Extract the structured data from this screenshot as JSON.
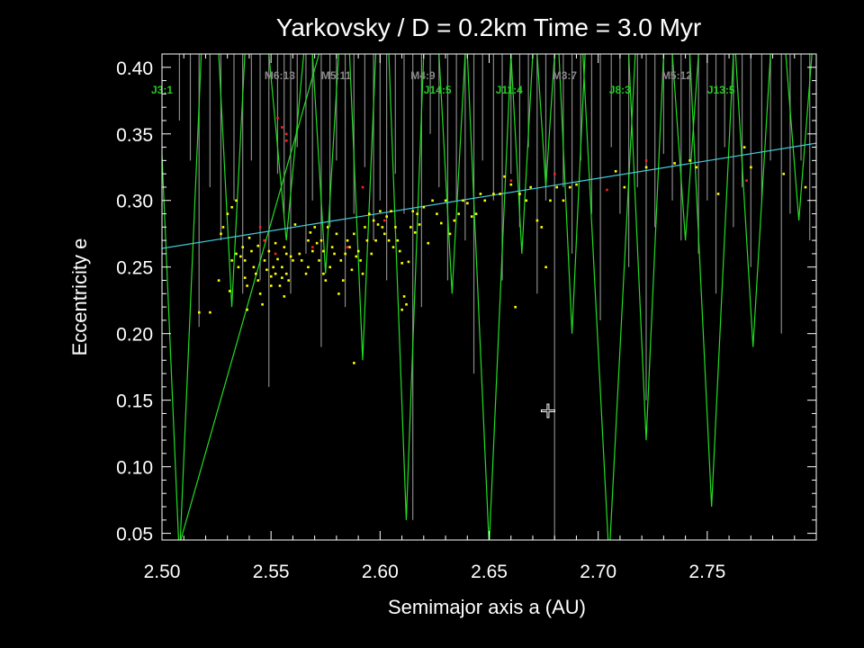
{
  "chart_data": {
    "type": "scatter",
    "title": "Yarkovsky / D = 0.2km   Time =    3.0 Myr",
    "xlabel": "Semimajor axis a (AU)",
    "ylabel": "Eccentricity e",
    "xlim": [
      2.5,
      2.8
    ],
    "ylim": [
      0.045,
      0.41
    ],
    "x_ticks": [
      "2.50",
      "2.55",
      "2.60",
      "2.65",
      "2.70",
      "2.75"
    ],
    "y_ticks": [
      "0.05",
      "0.10",
      "0.15",
      "0.20",
      "0.25",
      "0.30",
      "0.35",
      "0.40"
    ],
    "colors": {
      "background": "#000000",
      "axes": "#ffffff",
      "jupiter_resonance": "#22dd22",
      "minor_resonance": "#888888",
      "reference_line": "#44ccdd",
      "particles_main": "#ffff00",
      "particles_escaped": "#ff2020"
    },
    "resonance_labels": [
      {
        "label": "J3:1",
        "a": 2.5,
        "color": "#22cc22",
        "row": 2
      },
      {
        "label": "M6:13",
        "a": 2.547,
        "color": "#888888",
        "row": 1
      },
      {
        "label": "M5:11",
        "a": 2.573,
        "color": "#888888",
        "row": 1
      },
      {
        "label": "M4:9",
        "a": 2.614,
        "color": "#888888",
        "row": 1
      },
      {
        "label": "J14:5",
        "a": 2.62,
        "color": "#22cc22",
        "row": 2
      },
      {
        "label": "J11:4",
        "a": 2.653,
        "color": "#22cc22",
        "row": 2
      },
      {
        "label": "M3:7",
        "a": 2.679,
        "color": "#888888",
        "row": 1
      },
      {
        "label": "J8:3",
        "a": 2.705,
        "color": "#22cc22",
        "row": 2
      },
      {
        "label": "M5:12",
        "a": 2.729,
        "color": "#888888",
        "row": 1
      },
      {
        "label": "J13:5",
        "a": 2.75,
        "color": "#22cc22",
        "row": 2
      }
    ],
    "reference_line": {
      "a": [
        2.5,
        2.8
      ],
      "e": [
        0.264,
        0.343
      ]
    },
    "marker": {
      "a": 2.677,
      "e": 0.142
    },
    "green_spikes": [
      {
        "a": 2.508,
        "e_min": 0.03,
        "w": 0.01
      },
      {
        "a": 2.532,
        "e_min": 0.22,
        "w": 0.006
      },
      {
        "a": 2.557,
        "e_min": 0.27,
        "w": 0.008
      },
      {
        "a": 2.575,
        "e_min": 0.245,
        "w": 0.006
      },
      {
        "a": 2.592,
        "e_min": 0.18,
        "w": 0.006
      },
      {
        "a": 2.612,
        "e_min": 0.06,
        "w": 0.008
      },
      {
        "a": 2.633,
        "e_min": 0.23,
        "w": 0.006
      },
      {
        "a": 2.65,
        "e_min": 0.04,
        "w": 0.01
      },
      {
        "a": 2.665,
        "e_min": 0.26,
        "w": 0.005
      },
      {
        "a": 2.676,
        "e_min": 0.31,
        "w": 0.004
      },
      {
        "a": 2.688,
        "e_min": 0.2,
        "w": 0.006
      },
      {
        "a": 2.705,
        "e_min": 0.03,
        "w": 0.012
      },
      {
        "a": 2.722,
        "e_min": 0.12,
        "w": 0.008
      },
      {
        "a": 2.74,
        "e_min": 0.27,
        "w": 0.006
      },
      {
        "a": 2.752,
        "e_min": 0.07,
        "w": 0.01
      },
      {
        "a": 2.771,
        "e_min": 0.19,
        "w": 0.008
      },
      {
        "a": 2.792,
        "e_min": 0.285,
        "w": 0.006
      }
    ],
    "grey_lines": [
      {
        "a": 2.508,
        "e_min": 0.36
      },
      {
        "a": 2.513,
        "e_min": 0.33
      },
      {
        "a": 2.517,
        "e_min": 0.205
      },
      {
        "a": 2.522,
        "e_min": 0.31
      },
      {
        "a": 2.527,
        "e_min": 0.27
      },
      {
        "a": 2.533,
        "e_min": 0.3
      },
      {
        "a": 2.537,
        "e_min": 0.23
      },
      {
        "a": 2.541,
        "e_min": 0.33
      },
      {
        "a": 2.545,
        "e_min": 0.24
      },
      {
        "a": 2.549,
        "e_min": 0.16
      },
      {
        "a": 2.553,
        "e_min": 0.32
      },
      {
        "a": 2.556,
        "e_min": 0.29
      },
      {
        "a": 2.559,
        "e_min": 0.23
      },
      {
        "a": 2.562,
        "e_min": 0.34
      },
      {
        "a": 2.566,
        "e_min": 0.26
      },
      {
        "a": 2.569,
        "e_min": 0.3
      },
      {
        "a": 2.573,
        "e_min": 0.19
      },
      {
        "a": 2.577,
        "e_min": 0.28
      },
      {
        "a": 2.58,
        "e_min": 0.33
      },
      {
        "a": 2.584,
        "e_min": 0.22
      },
      {
        "a": 2.588,
        "e_min": 0.29
      },
      {
        "a": 2.593,
        "e_min": 0.325
      },
      {
        "a": 2.597,
        "e_min": 0.27
      },
      {
        "a": 2.6,
        "e_min": 0.3
      },
      {
        "a": 2.603,
        "e_min": 0.24
      },
      {
        "a": 2.607,
        "e_min": 0.32
      },
      {
        "a": 2.611,
        "e_min": 0.29
      },
      {
        "a": 2.615,
        "e_min": 0.06
      },
      {
        "a": 2.619,
        "e_min": 0.22
      },
      {
        "a": 2.623,
        "e_min": 0.35
      },
      {
        "a": 2.627,
        "e_min": 0.31
      },
      {
        "a": 2.631,
        "e_min": 0.24
      },
      {
        "a": 2.635,
        "e_min": 0.3
      },
      {
        "a": 2.639,
        "e_min": 0.27
      },
      {
        "a": 2.643,
        "e_min": 0.17
      },
      {
        "a": 2.647,
        "e_min": 0.33
      },
      {
        "a": 2.652,
        "e_min": 0.3
      },
      {
        "a": 2.656,
        "e_min": 0.24
      },
      {
        "a": 2.66,
        "e_min": 0.32
      },
      {
        "a": 2.664,
        "e_min": 0.28
      },
      {
        "a": 2.668,
        "e_min": 0.34
      },
      {
        "a": 2.672,
        "e_min": 0.23
      },
      {
        "a": 2.676,
        "e_min": 0.3
      },
      {
        "a": 2.68,
        "e_min": 0.04
      },
      {
        "a": 2.684,
        "e_min": 0.31
      },
      {
        "a": 2.688,
        "e_min": 0.26
      },
      {
        "a": 2.692,
        "e_min": 0.33
      },
      {
        "a": 2.697,
        "e_min": 0.29
      },
      {
        "a": 2.701,
        "e_min": 0.21
      },
      {
        "a": 2.706,
        "e_min": 0.34
      },
      {
        "a": 2.71,
        "e_min": 0.29
      },
      {
        "a": 2.714,
        "e_min": 0.25
      },
      {
        "a": 2.718,
        "e_min": 0.31
      },
      {
        "a": 2.722,
        "e_min": 0.15
      },
      {
        "a": 2.726,
        "e_min": 0.28
      },
      {
        "a": 2.73,
        "e_min": 0.335
      },
      {
        "a": 2.734,
        "e_min": 0.3
      },
      {
        "a": 2.738,
        "e_min": 0.27
      },
      {
        "a": 2.742,
        "e_min": 0.33
      },
      {
        "a": 2.746,
        "e_min": 0.26
      },
      {
        "a": 2.75,
        "e_min": 0.3
      },
      {
        "a": 2.754,
        "e_min": 0.23
      },
      {
        "a": 2.758,
        "e_min": 0.34
      },
      {
        "a": 2.762,
        "e_min": 0.28
      },
      {
        "a": 2.766,
        "e_min": 0.31
      },
      {
        "a": 2.77,
        "e_min": 0.25
      },
      {
        "a": 2.775,
        "e_min": 0.3
      },
      {
        "a": 2.779,
        "e_min": 0.33
      },
      {
        "a": 2.784,
        "e_min": 0.2
      },
      {
        "a": 2.788,
        "e_min": 0.29
      },
      {
        "a": 2.793,
        "e_min": 0.33
      },
      {
        "a": 2.797,
        "e_min": 0.27
      }
    ],
    "series": [
      {
        "color": "#ffff00",
        "points": [
          [
            2.517,
            0.216
          ],
          [
            2.522,
            0.216
          ],
          [
            2.526,
            0.24
          ],
          [
            2.527,
            0.275
          ],
          [
            2.528,
            0.28
          ],
          [
            2.53,
            0.29
          ],
          [
            2.532,
            0.295
          ],
          [
            2.534,
            0.3
          ],
          [
            2.531,
            0.232
          ],
          [
            2.532,
            0.255
          ],
          [
            2.534,
            0.26
          ],
          [
            2.535,
            0.25
          ],
          [
            2.536,
            0.258
          ],
          [
            2.537,
            0.265
          ],
          [
            2.538,
            0.242
          ],
          [
            2.538,
            0.255
          ],
          [
            2.539,
            0.236
          ],
          [
            2.539,
            0.218
          ],
          [
            2.54,
            0.272
          ],
          [
            2.541,
            0.262
          ],
          [
            2.542,
            0.25
          ],
          [
            2.543,
            0.245
          ],
          [
            2.544,
            0.266
          ],
          [
            2.544,
            0.24
          ],
          [
            2.545,
            0.23
          ],
          [
            2.546,
            0.222
          ],
          [
            2.547,
            0.27
          ],
          [
            2.547,
            0.255
          ],
          [
            2.548,
            0.248
          ],
          [
            2.549,
            0.262
          ],
          [
            2.55,
            0.243
          ],
          [
            2.55,
            0.236
          ],
          [
            2.551,
            0.25
          ],
          [
            2.552,
            0.268
          ],
          [
            2.552,
            0.245
          ],
          [
            2.553,
            0.256
          ],
          [
            2.554,
            0.236
          ],
          [
            2.555,
            0.242
          ],
          [
            2.555,
            0.25
          ],
          [
            2.556,
            0.265
          ],
          [
            2.556,
            0.228
          ],
          [
            2.557,
            0.26
          ],
          [
            2.557,
            0.245
          ],
          [
            2.558,
            0.24
          ],
          [
            2.559,
            0.258
          ],
          [
            2.56,
            0.255
          ],
          [
            2.561,
            0.282
          ],
          [
            2.563,
            0.26
          ],
          [
            2.564,
            0.255
          ],
          [
            2.566,
            0.245
          ],
          [
            2.567,
            0.27
          ],
          [
            2.567,
            0.25
          ],
          [
            2.568,
            0.276
          ],
          [
            2.569,
            0.262
          ],
          [
            2.57,
            0.28
          ],
          [
            2.571,
            0.268
          ],
          [
            2.572,
            0.255
          ],
          [
            2.573,
            0.27
          ],
          [
            2.574,
            0.262
          ],
          [
            2.574,
            0.245
          ],
          [
            2.575,
            0.24
          ],
          [
            2.576,
            0.28
          ],
          [
            2.577,
            0.25
          ],
          [
            2.578,
            0.265
          ],
          [
            2.579,
            0.26
          ],
          [
            2.58,
            0.275
          ],
          [
            2.581,
            0.23
          ],
          [
            2.582,
            0.255
          ],
          [
            2.583,
            0.24
          ],
          [
            2.584,
            0.26
          ],
          [
            2.585,
            0.27
          ],
          [
            2.586,
            0.265
          ],
          [
            2.587,
            0.248
          ],
          [
            2.588,
            0.275
          ],
          [
            2.589,
            0.258
          ],
          [
            2.59,
            0.262
          ],
          [
            2.591,
            0.255
          ],
          [
            2.592,
            0.245
          ],
          [
            2.593,
            0.28
          ],
          [
            2.594,
            0.27
          ],
          [
            2.595,
            0.29
          ],
          [
            2.596,
            0.26
          ],
          [
            2.597,
            0.285
          ],
          [
            2.598,
            0.27
          ],
          [
            2.599,
            0.282
          ],
          [
            2.6,
            0.292
          ],
          [
            2.601,
            0.28
          ],
          [
            2.602,
            0.275
          ],
          [
            2.603,
            0.288
          ],
          [
            2.604,
            0.27
          ],
          [
            2.605,
            0.292
          ],
          [
            2.606,
            0.265
          ],
          [
            2.607,
            0.28
          ],
          [
            2.608,
            0.27
          ],
          [
            2.609,
            0.262
          ],
          [
            2.61,
            0.253
          ],
          [
            2.611,
            0.228
          ],
          [
            2.612,
            0.222
          ],
          [
            2.613,
            0.254
          ],
          [
            2.614,
            0.28
          ],
          [
            2.615,
            0.292
          ],
          [
            2.616,
            0.276
          ],
          [
            2.617,
            0.29
          ],
          [
            2.618,
            0.282
          ],
          [
            2.62,
            0.295
          ],
          [
            2.622,
            0.268
          ],
          [
            2.624,
            0.3
          ],
          [
            2.626,
            0.29
          ],
          [
            2.628,
            0.283
          ],
          [
            2.63,
            0.3
          ],
          [
            2.632,
            0.275
          ],
          [
            2.634,
            0.285
          ],
          [
            2.636,
            0.29
          ],
          [
            2.638,
            0.3
          ],
          [
            2.64,
            0.298
          ],
          [
            2.642,
            0.288
          ],
          [
            2.644,
            0.29
          ],
          [
            2.646,
            0.305
          ],
          [
            2.648,
            0.3
          ],
          [
            2.652,
            0.305
          ],
          [
            2.655,
            0.305
          ],
          [
            2.657,
            0.318
          ],
          [
            2.66,
            0.312
          ],
          [
            2.662,
            0.22
          ],
          [
            2.664,
            0.305
          ],
          [
            2.667,
            0.3
          ],
          [
            2.669,
            0.31
          ],
          [
            2.672,
            0.285
          ],
          [
            2.674,
            0.28
          ],
          [
            2.676,
            0.25
          ],
          [
            2.678,
            0.3
          ],
          [
            2.681,
            0.31
          ],
          [
            2.684,
            0.3
          ],
          [
            2.687,
            0.31
          ],
          [
            2.69,
            0.312
          ],
          [
            2.708,
            0.322
          ],
          [
            2.712,
            0.31
          ],
          [
            2.722,
            0.325
          ],
          [
            2.735,
            0.328
          ],
          [
            2.742,
            0.33
          ],
          [
            2.745,
            0.325
          ],
          [
            2.755,
            0.305
          ],
          [
            2.767,
            0.34
          ],
          [
            2.77,
            0.325
          ],
          [
            2.785,
            0.32
          ],
          [
            2.795,
            0.31
          ],
          [
            2.588,
            0.178
          ],
          [
            2.61,
            0.218
          ]
        ]
      },
      {
        "color": "#ff2020",
        "points": [
          [
            2.553,
            0.362
          ],
          [
            2.555,
            0.355
          ],
          [
            2.557,
            0.35
          ],
          [
            2.557,
            0.345
          ],
          [
            2.545,
            0.28
          ],
          [
            2.547,
            0.27
          ],
          [
            2.552,
            0.26
          ],
          [
            2.569,
            0.265
          ],
          [
            2.585,
            0.265
          ],
          [
            2.592,
            0.31
          ],
          [
            2.602,
            0.285
          ],
          [
            2.66,
            0.315
          ],
          [
            2.68,
            0.32
          ],
          [
            2.704,
            0.308
          ],
          [
            2.722,
            0.33
          ],
          [
            2.768,
            0.315
          ]
        ]
      }
    ]
  }
}
